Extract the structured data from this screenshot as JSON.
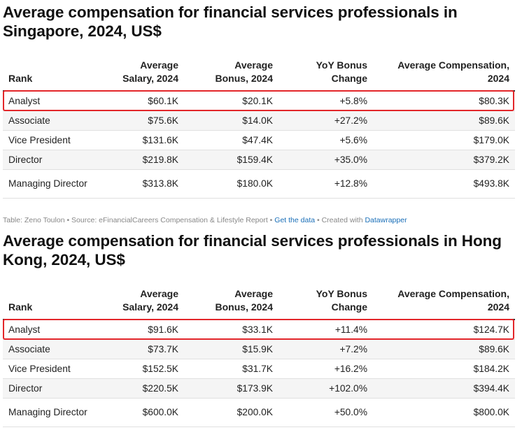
{
  "columns": [
    "Rank",
    "Average\nSalary, 2024",
    "Average\nBonus, 2024",
    "YoY Bonus\nChange",
    "Average Compensation,\n2024"
  ],
  "column_lines": [
    [
      "",
      "Rank"
    ],
    [
      "Average",
      "Salary, 2024"
    ],
    [
      "Average",
      "Bonus, 2024"
    ],
    [
      "YoY Bonus",
      "Change"
    ],
    [
      "Average Compensation,",
      "2024"
    ]
  ],
  "singapore": {
    "title": "Average compensation for financial services professionals in Singapore, 2024, US$",
    "rows": [
      [
        "Analyst",
        "$60.1K",
        "$20.1K",
        "+5.8%",
        "$80.3K"
      ],
      [
        "Associate",
        "$75.6K",
        "$14.0K",
        "+27.2%",
        "$89.6K"
      ],
      [
        "Vice President",
        "$131.6K",
        "$47.4K",
        "+5.6%",
        "$179.0K"
      ],
      [
        "Director",
        "$219.8K",
        "$159.4K",
        "+35.0%",
        "$379.2K"
      ],
      [
        "Managing Director",
        "$313.8K",
        "$180.0K",
        "+12.8%",
        "$493.8K"
      ]
    ],
    "highlighted_row": "Analyst"
  },
  "footer": {
    "prefix": "Table: Zeno Toulon • Source: eFinancialCareers Compensation & Lifestyle Report • ",
    "get_data": "Get the data",
    "middle": " • Created with ",
    "datawrapper": "Datawrapper"
  },
  "hongkong": {
    "title": "Average compensation for financial services professionals in Hong Kong, 2024, US$",
    "rows": [
      [
        "Analyst",
        "$91.6K",
        "$33.1K",
        "+11.4%",
        "$124.7K"
      ],
      [
        "Associate",
        "$73.7K",
        "$15.9K",
        "+7.2%",
        "$89.6K"
      ],
      [
        "Vice President",
        "$152.5K",
        "$31.7K",
        "+16.2%",
        "$184.2K"
      ],
      [
        "Director",
        "$220.5K",
        "$173.9K",
        "+102.0%",
        "$394.4K"
      ],
      [
        "Managing Director",
        "$600.0K",
        "$200.0K",
        "+50.0%",
        "$800.0K"
      ]
    ],
    "highlighted_row": "Analyst"
  },
  "colors": {
    "highlight": "#e3262a",
    "link": "#1a6fb8",
    "stripe": "#f5f5f5"
  }
}
